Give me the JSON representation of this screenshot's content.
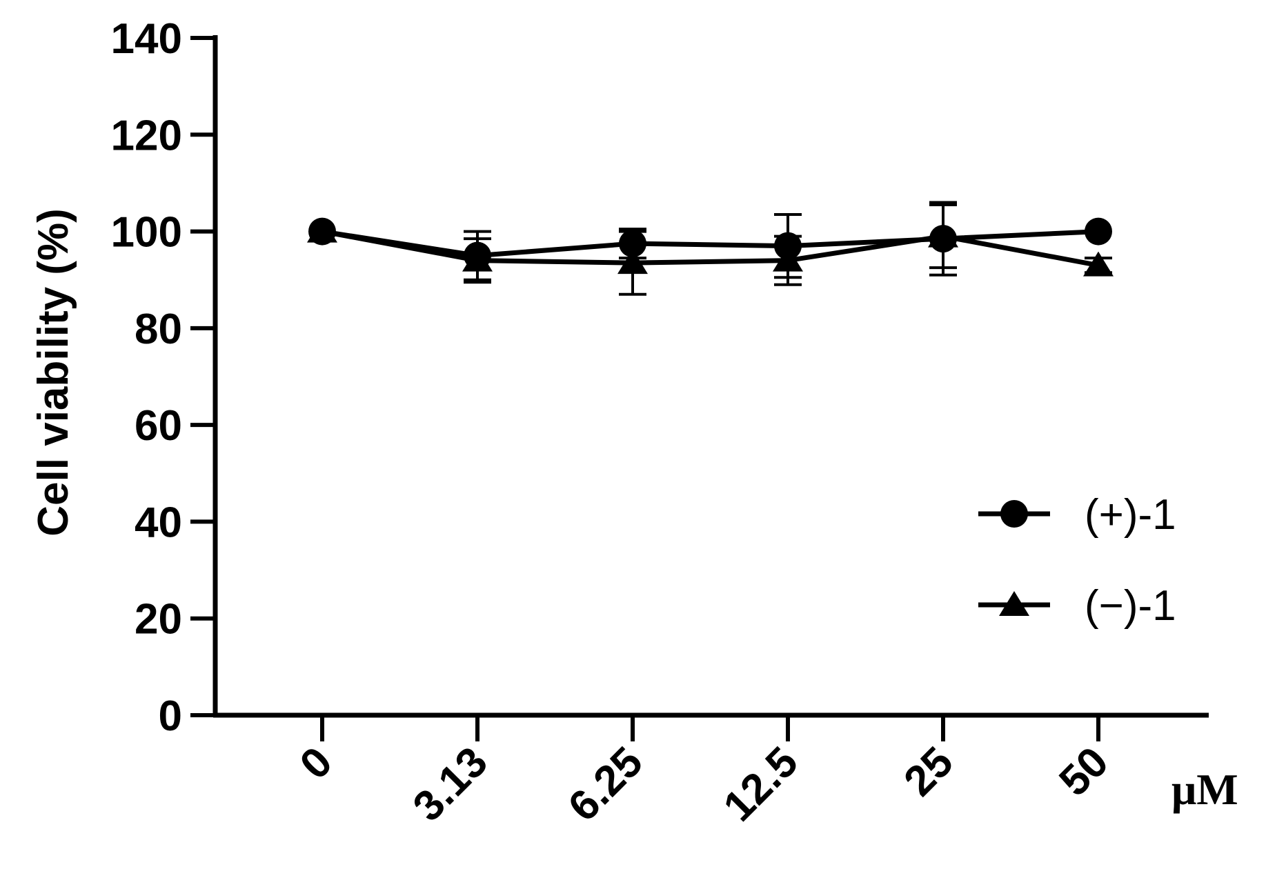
{
  "chart_data": {
    "type": "line",
    "title": "",
    "xlabel": "",
    "x_unit": "μM",
    "ylabel": "Cell viability (%)",
    "ylim": [
      0,
      140
    ],
    "yticks": [
      0,
      20,
      40,
      60,
      80,
      100,
      120,
      140
    ],
    "yticklabels": [
      "0",
      "20",
      "40",
      "60",
      "80",
      "100",
      "120",
      "140"
    ],
    "categories": [
      "0",
      "3.13",
      "6.25",
      "12.5",
      "25",
      "50"
    ],
    "legend_position": "right",
    "grid": false,
    "series": [
      {
        "name": "(+)-1",
        "marker": "circle",
        "values": [
          100,
          95,
          97.5,
          97,
          98.5,
          100
        ],
        "errors": [
          0,
          5,
          3,
          6.5,
          7.5,
          0
        ]
      },
      {
        "name": "(−)-1",
        "marker": "triangle",
        "values": [
          100,
          94,
          93.5,
          94,
          99,
          93
        ],
        "errors": [
          0,
          4.5,
          6.5,
          5,
          6.5,
          1.5
        ]
      }
    ]
  }
}
